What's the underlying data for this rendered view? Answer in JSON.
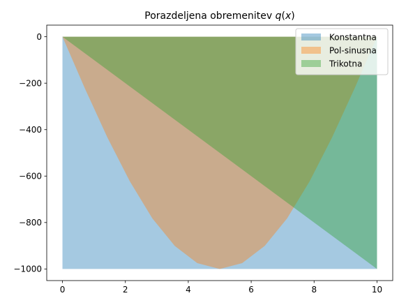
{
  "chart_data": {
    "type": "area",
    "title": "Porazdeljena obremenitev q(x)",
    "xlabel": "",
    "ylabel": "",
    "xlim": [
      -0.5,
      10.5
    ],
    "ylim": [
      -1050,
      50
    ],
    "xticks": [
      0,
      2,
      4,
      6,
      8,
      10
    ],
    "xtick_labels": [
      "0",
      "2",
      "4",
      "6",
      "8",
      "10"
    ],
    "yticks": [
      0,
      -200,
      -400,
      -600,
      -800,
      -1000
    ],
    "ytick_labels": [
      "0",
      "−200",
      "−400",
      "−600",
      "−800",
      "−1000"
    ],
    "grid": false,
    "legend": "top-right",
    "alpha": 0.4,
    "series": [
      {
        "name": "Konstantna",
        "color": "#1f77b4",
        "x": [
          0,
          10
        ],
        "y": [
          -1000,
          -1000
        ]
      },
      {
        "name": "Pol-sinusna",
        "color": "#ff7f0e",
        "x": [
          0,
          0.714,
          1.429,
          2.143,
          2.857,
          3.571,
          4.286,
          5.0,
          5.714,
          6.429,
          7.143,
          7.857,
          8.571,
          9.286,
          10.0
        ],
        "y": [
          0,
          -223,
          -434,
          -623,
          -782,
          -901,
          -975,
          -1000,
          -975,
          -901,
          -782,
          -623,
          -434,
          -223,
          0
        ]
      },
      {
        "name": "Trikotna",
        "color": "#2ca02c",
        "x": [
          0,
          10
        ],
        "y": [
          0,
          -1000
        ]
      }
    ]
  }
}
